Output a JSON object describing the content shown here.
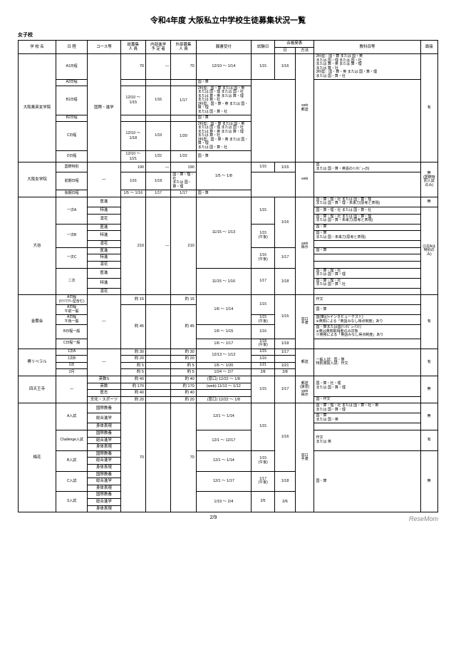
{
  "title": "令和4年度 大阪私立中学校生徒募集状況一覧",
  "subtitle": "女子校",
  "headers": {
    "school": "学 校 名",
    "schedule": "日 程",
    "course": "コース等",
    "capacity": "総募集\n人 員",
    "internal": "内部進学\n予 定 者",
    "external": "外部募集\n人 員",
    "application": "願書受付",
    "exam_date": "試験日",
    "announce": "合格発表",
    "announce_date": "日",
    "announce_method": "方法",
    "subjects": "教科目等",
    "interview": "面接"
  },
  "schools": [
    {
      "name": "大阪薫英女学院",
      "rows": [
        {
          "sched": "A1日程",
          "course_span": 6,
          "course": "国際・進学",
          "cap": "70",
          "int": "—",
          "ext": "70",
          "app": "12/10 ～ 1/14",
          "exam": "1/15",
          "annd": "1/16",
          "annm_span": 6,
          "annm": "web\n郵送",
          "subj": "2科型：国・算 または 国・英\nまたは 国・理 または 国・社\nまたは 算・英 または 算・理\nまたは 算・社\n3科型：国・算・英 または 国・算・理\nまたは 国・算・社",
          "intv_span": 6,
          "intv": "有"
        },
        {
          "sched": "A2日程",
          "app": "",
          "exam": "",
          "annd": "",
          "subj": "国・算"
        },
        {
          "sched": "B1日程",
          "app": "12/10 ～ 1/15",
          "exam": "1/16",
          "annd": "1/17",
          "subj": "2科型：国・算 または 国・英\nまたは 国・理 または 国・社\nまたは 算・英 または 算・理\nまたは 算・社\n3科型：国・算・英 または 国・算・理\nまたは 国・算・社"
        },
        {
          "sched": "B2日程",
          "app": "",
          "exam": "",
          "annd": "",
          "subj": "国・算"
        },
        {
          "sched": "C日程",
          "app": "12/10 ～ 1/18",
          "exam": "1/19",
          "annd": "1/20",
          "subj": "2科型：国・算 または 国・英\nまたは 国・理 または 国・社\nまたは 算・英 または 算・理\nまたは 算・社\n3科型：国・算・英 または 国・算・理\nまたは 国・算・社"
        },
        {
          "sched": "D日程",
          "app": "12/10 ～ 1/21",
          "exam": "1/22",
          "annd": "1/22",
          "subj": "国・算"
        }
      ]
    },
    {
      "name": "大阪女学院",
      "rows": [
        {
          "sched": "国際特別",
          "course_span": 3,
          "course": "—",
          "cap": "190",
          "int": "—",
          "ext": "190",
          "app_span": 2,
          "app": "1/5 ～ 1/8",
          "exam": "1/15",
          "annd": "1/15",
          "annm_span": 3,
          "annm": "web",
          "subj": "国\nまたは 国・算・英語のｲﾝﾀﾋﾞｭｰ(5)",
          "intv_span": 3,
          "intv": "無\n(国際特別入試のみ)\n"
        },
        {
          "sched": "前期日程",
          "exam": "1/16",
          "annd": "1/16",
          "subj": "国・算・理・社\nまたは 国・算・理"
        },
        {
          "sched": "後期日程",
          "app": "1/5 ～ 1/16",
          "exam": "1/17",
          "annd": "1/17",
          "subj": "国・算"
        }
      ]
    },
    {
      "name": "大谷",
      "rows": [
        {
          "sched": "一次A",
          "sched_span": 3,
          "course": "医進",
          "cap": "210",
          "cap_span": 12,
          "int": "—",
          "ext": "210",
          "app_span": 9,
          "app": "11/15 ～ 1/13",
          "exam_span": 3,
          "exam": "1/15",
          "annd_span": 6,
          "annd": "1/16",
          "annm_span": 12,
          "annm": "web\n掲示",
          "subj": "国・算・理・社 または 国・算・理\nまたは 国・算・理・未来力(思考と表現)",
          "intv": "無"
        },
        {
          "course": "特進",
          "subj": "国・算・理・社 または 国・算・社",
          "intv_span": 11,
          "intv": "(1次Aは特別のみ)"
        },
        {
          "course": "凛花",
          "subj": "国・算・理・社 または 国・算・理\nまたは 国・算・未来力(思考と表現)"
        },
        {
          "sched": "一次B",
          "sched_span": 3,
          "course": "医進",
          "exam_span": 3,
          "exam": "1/15\n(午後)",
          "subj": "国・算"
        },
        {
          "course": "特進",
          "subj": "国・算\nまたは 国・未来力(思考と表現)"
        },
        {
          "course": "凛花",
          "subj": ""
        },
        {
          "sched": "一次C",
          "sched_span": 3,
          "course": "医進",
          "exam_span": 3,
          "exam": "1/16\n(午後)",
          "annd_span": 3,
          "annd": "1/17",
          "subj": "国・算"
        },
        {
          "course": "特進",
          "subj": ""
        },
        {
          "course": "凛花",
          "subj": ""
        },
        {
          "sched": "二次",
          "sched_span": 3,
          "course": "医進",
          "app": "11/15 ～ 1/16",
          "app_span": 3,
          "exam_span": 3,
          "exam": "1/17",
          "annd_span": 3,
          "annd": "1/18",
          "subj": "国・算・理・社\nまたは 国・算・理"
        },
        {
          "course": "特進",
          "subj": "国・算・理・社\nまたは 国・算・社"
        },
        {
          "course": "凛花",
          "subj": ""
        }
      ]
    },
    {
      "name": "金蘭会",
      "rows": [
        {
          "sched": "A日程\n(ｷﾗﾘﾌｸﾘｰ型含む)",
          "course_span": 5,
          "course": "—",
          "cap": "約   15",
          "int": "",
          "ext": "約   15",
          "app_span": 3,
          "app": "1/6 ～ 1/14",
          "exam_span": 2,
          "exam": "1/15",
          "annd_span": 4,
          "annd": "1/15",
          "annm_span": 5,
          "annm": "窓口\n手渡",
          "subj": "作文",
          "intv_span": 5,
          "intv": "有"
        },
        {
          "sched": "A日程\n午前一般",
          "cap": "約   45",
          "cap_span": 4,
          "int": "",
          "ext": "約   45",
          "subj": "国・算"
        },
        {
          "sched": "A日程\n午後一般",
          "exam": "1/15\n(午後)",
          "subj": "国(筆記+インタビューテスト)\n※英検による「英語みなし得点制度」あり"
        },
        {
          "sched": "B日程一般",
          "app": "1/6 ～ 1/15",
          "exam": "1/16",
          "subj": "国・算または国(ｲﾝﾀﾋﾞｭｰﾃｽﾄ)\n※英は英検取得者のみ対象\n※英検による「英語みなし得点制度」あり"
        },
        {
          "sched": "C日程一般",
          "app": "1/6 ～ 1/17",
          "exam": "1/18\n(午後)",
          "annd": "1/18",
          "subj": ""
        }
      ]
    },
    {
      "name": "堺リベラル",
      "rows": [
        {
          "sched": "1次A",
          "course_span": 4,
          "course": "—",
          "cap": "約   30",
          "int": "",
          "ext": "約   30",
          "app_span": 2,
          "app": "12/13 ～ 1/12",
          "exam": "1/15",
          "annd": "1/17",
          "annm_span": 4,
          "annm": "郵送",
          "subj_span": 4,
          "subj": "一般入試：国・算\n特別選抜入試：作文",
          "intv_span": 4,
          "intv": "有"
        },
        {
          "sched": "1次B",
          "cap": "約   20",
          "int": "",
          "ext": "約   20",
          "exam": "1/16",
          "annd": ""
        },
        {
          "sched": "2次",
          "cap": "約    5",
          "int": "",
          "ext": "約    5",
          "app": "1/5 ～ 1/20",
          "exam": "1/21",
          "annd": "1/21"
        },
        {
          "sched": "2月",
          "cap": "約    5",
          "int": "",
          "ext": "約    5",
          "app": "1/24 ～ 2/7",
          "exam": "2/8",
          "annd": "2/8"
        }
      ]
    },
    {
      "name": "四天王寺",
      "rows": [
        {
          "sched_span": 4,
          "sched": "—",
          "course": "英数S",
          "cap": "約   40",
          "int": "",
          "ext": "約   40",
          "app": "(窓口) 12/22 ～ 1/8",
          "exam_span": 4,
          "exam": "1/15",
          "annd_span": 4,
          "annd": "1/17",
          "annm_span": 4,
          "annm": "郵送\n(速達)\nweb\n掲示",
          "subj_span": 3,
          "subj": "国・算・社・理\nまたは 国・算・理",
          "intv_span": 4,
          "intv": "無"
        },
        {
          "course": "英数",
          "cap": "約  170",
          "int": "",
          "ext": "約  170",
          "app": "(web) 11/13 ～ 1/12"
        },
        {
          "course": "医志",
          "cap": "約   40",
          "int": "",
          "ext": "約   40",
          "app": ""
        },
        {
          "course": "文化・スポーツ",
          "cap": "約   20",
          "int": "",
          "ext": "約   20",
          "app": "(窓口) 12/22 ～ 1/8",
          "subj": "国・作文"
        }
      ]
    },
    {
      "name": "梅花",
      "rows": [
        {
          "sched": "A入試",
          "sched_span": 3,
          "course": "国際教養",
          "cap_span": 15,
          "cap": "70",
          "int": "",
          "ext": "70",
          "app_span": 3,
          "app": "12/1 ～ 1/14",
          "exam_span": 6,
          "exam": "1/15",
          "annd_span": 9,
          "annd": "1/16",
          "annm_span": 15,
          "annm": "窓口\n手渡",
          "subj": "国・算・理・社 または 国・算・社・英\nまたは 国・算・理",
          "intv_span": 3,
          "intv": "無"
        },
        {
          "course": "総合進学",
          "subj": "国・算\nまたは 国・英"
        },
        {
          "course": "身体表現",
          "subj": ""
        },
        {
          "sched": "Challenge入試",
          "sched_span": 3,
          "course": "国際教養",
          "app_span": 3,
          "app": "12/1 ～ 12/17",
          "subj_span": 3,
          "subj": "作文\nまたは 英",
          "intv_span": 3,
          "intv": "有"
        },
        {
          "course": "総合進学"
        },
        {
          "course": "身体表現"
        },
        {
          "sched": "B入試",
          "sched_span": 3,
          "course": "国際教養",
          "app_span": 3,
          "app": "12/1 ～ 1/14",
          "exam_span": 3,
          "exam": "1/15\n(午後)",
          "subj_span": 9,
          "subj": "国・算",
          "intv_span": 9,
          "intv": "無"
        },
        {
          "course": "総合進学"
        },
        {
          "course": "身体表現"
        },
        {
          "sched": "C入試",
          "sched_span": 3,
          "course": "国際教養",
          "app_span": 3,
          "app": "12/1 ～ 1/17",
          "exam_span": 3,
          "exam": "1/17\n(午後)",
          "annd_span": 3,
          "annd": "1/18"
        },
        {
          "course": "総合進学"
        },
        {
          "course": "身体表現"
        },
        {
          "sched": "S入試",
          "sched_span": 3,
          "course": "国際教養",
          "app_span": 3,
          "app": "1/19 ～ 2/4",
          "exam_span": 3,
          "exam": "2/5",
          "annd_span": 3,
          "annd": "2/6"
        },
        {
          "course": "総合進学"
        },
        {
          "course": "身体表現"
        }
      ]
    }
  ],
  "footer": {
    "page": "2/9",
    "brand": "ReseMom"
  }
}
